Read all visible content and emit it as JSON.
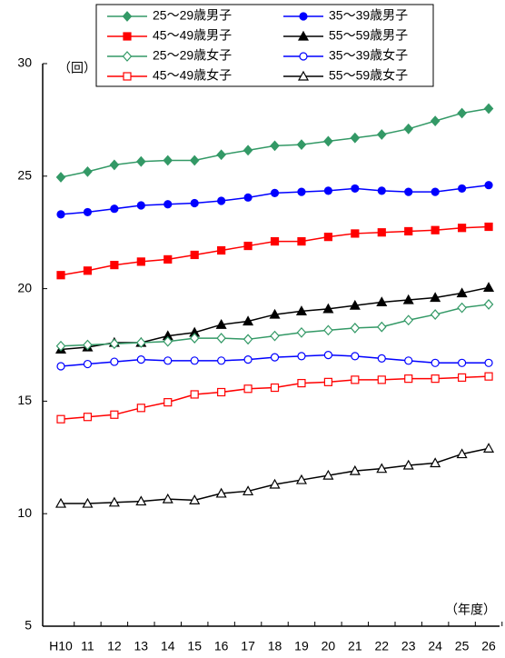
{
  "chart_data": {
    "type": "line",
    "y_label": "（回）",
    "x_label": "（年度）",
    "categories": [
      "H10",
      "11",
      "12",
      "13",
      "14",
      "15",
      "16",
      "17",
      "18",
      "19",
      "20",
      "21",
      "22",
      "23",
      "24",
      "25",
      "26"
    ],
    "ylim": [
      5,
      30
    ],
    "yticks": [
      5,
      10,
      15,
      20,
      25,
      30
    ],
    "grid": false,
    "series": [
      {
        "name": "25～29歳男子",
        "color": "#339966",
        "marker": "diamond",
        "filled": true,
        "values": [
          24.95,
          25.2,
          25.5,
          25.65,
          25.7,
          25.7,
          25.95,
          26.15,
          26.35,
          26.4,
          26.55,
          26.7,
          26.85,
          27.1,
          27.45,
          27.8,
          28.0
        ]
      },
      {
        "name": "35～39歳男子",
        "color": "#0000ff",
        "marker": "circle",
        "filled": true,
        "values": [
          23.3,
          23.4,
          23.55,
          23.7,
          23.75,
          23.8,
          23.9,
          24.05,
          24.25,
          24.3,
          24.35,
          24.45,
          24.35,
          24.3,
          24.3,
          24.45,
          24.6
        ]
      },
      {
        "name": "45～49歳男子",
        "color": "#ff0000",
        "marker": "square",
        "filled": true,
        "values": [
          20.6,
          20.8,
          21.05,
          21.2,
          21.3,
          21.5,
          21.7,
          21.9,
          22.1,
          22.1,
          22.3,
          22.45,
          22.5,
          22.55,
          22.6,
          22.7,
          22.75
        ]
      },
      {
        "name": "55～59歳男子",
        "color": "#000000",
        "marker": "triangle",
        "filled": true,
        "values": [
          17.3,
          17.4,
          17.6,
          17.6,
          17.9,
          18.05,
          18.4,
          18.55,
          18.85,
          19.0,
          19.1,
          19.25,
          19.4,
          19.5,
          19.6,
          19.8,
          20.05
        ]
      },
      {
        "name": "25～29歳女子",
        "color": "#339966",
        "marker": "diamond",
        "filled": false,
        "values": [
          17.45,
          17.5,
          17.55,
          17.6,
          17.65,
          17.8,
          17.8,
          17.75,
          17.9,
          18.05,
          18.15,
          18.25,
          18.3,
          18.6,
          18.85,
          19.15,
          19.3
        ]
      },
      {
        "name": "35～39歳女子",
        "color": "#0000ff",
        "marker": "circle",
        "filled": false,
        "values": [
          16.55,
          16.65,
          16.75,
          16.85,
          16.8,
          16.8,
          16.8,
          16.85,
          16.95,
          17.0,
          17.05,
          17.0,
          16.9,
          16.8,
          16.7,
          16.7,
          16.7
        ]
      },
      {
        "name": "45～49歳女子",
        "color": "#ff0000",
        "marker": "square",
        "filled": false,
        "values": [
          14.2,
          14.3,
          14.4,
          14.7,
          14.95,
          15.3,
          15.4,
          15.55,
          15.6,
          15.8,
          15.85,
          15.95,
          15.95,
          16.0,
          16.0,
          16.05,
          16.1
        ]
      },
      {
        "name": "55～59歳女子",
        "color": "#000000",
        "marker": "triangle",
        "filled": false,
        "values": [
          10.45,
          10.45,
          10.5,
          10.55,
          10.65,
          10.6,
          10.9,
          11.0,
          11.3,
          11.5,
          11.7,
          11.9,
          12.0,
          12.15,
          12.25,
          12.65,
          12.9
        ]
      }
    ]
  }
}
